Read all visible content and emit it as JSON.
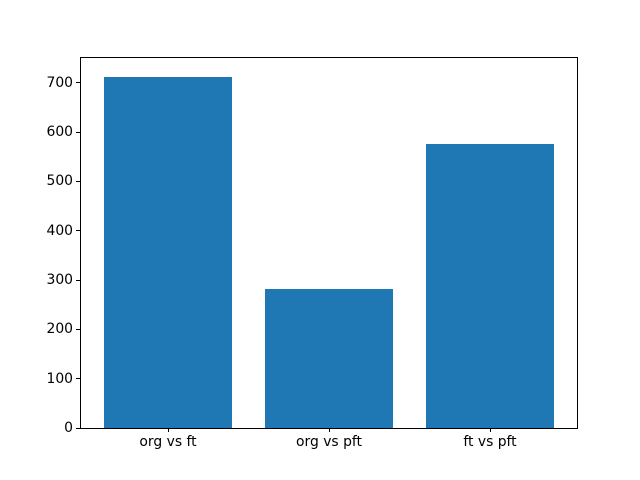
{
  "figure": {
    "background": "#ffffff"
  },
  "chart_data": {
    "type": "bar",
    "categories": [
      "org vs ft",
      "org vs pft",
      "ft vs pft"
    ],
    "values": [
      712,
      281,
      576
    ],
    "title": "",
    "xlabel": "",
    "ylabel": "",
    "ylim": [
      0,
      750
    ],
    "yticks": [
      0,
      100,
      200,
      300,
      400,
      500,
      600,
      700
    ],
    "bar_width_fraction": 0.8,
    "bar_color": "#1f77b4",
    "axis_color": "#000000",
    "tick_label_color": "#000000",
    "grid": false,
    "legend": "none"
  }
}
